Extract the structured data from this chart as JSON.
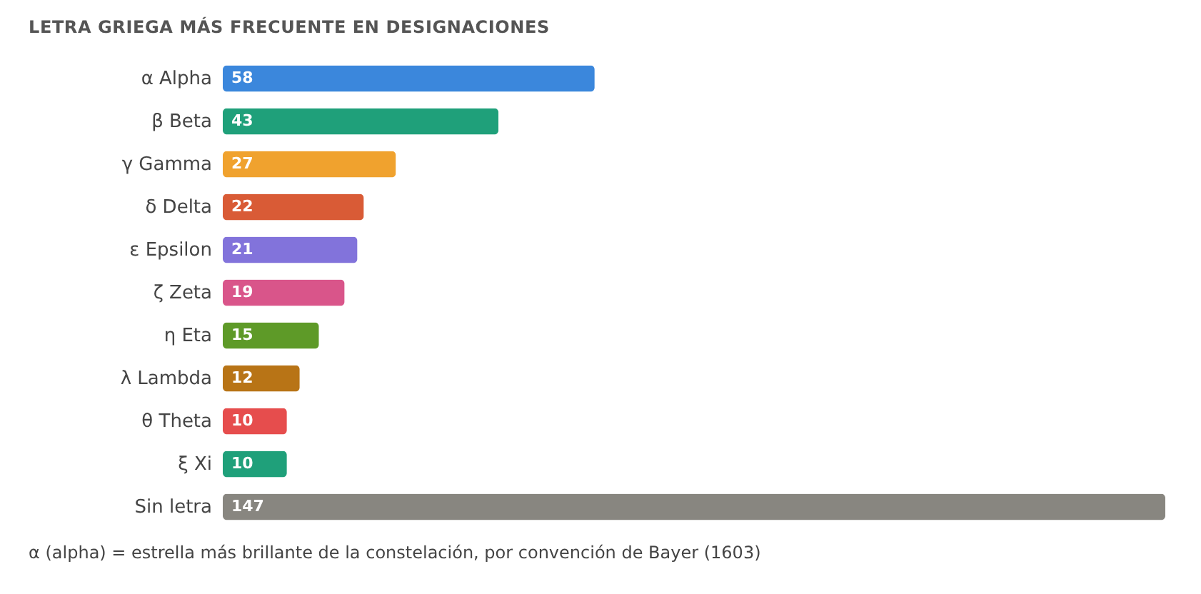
{
  "chart_data": {
    "type": "bar",
    "orientation": "horizontal",
    "title": "LETRA GRIEGA MÁS FRECUENTE EN DESIGNACIONES",
    "categories": [
      "α Alpha",
      "β Beta",
      "γ Gamma",
      "δ Delta",
      "ε Epsilon",
      "ζ Zeta",
      "η Eta",
      "λ Lambda",
      "θ Theta",
      "ξ Xi",
      "Sin letra"
    ],
    "values": [
      58,
      43,
      27,
      22,
      21,
      19,
      15,
      12,
      10,
      10,
      147
    ],
    "colors": [
      "#3b87dc",
      "#1fa07a",
      "#f0a22e",
      "#d95b36",
      "#8273db",
      "#d9558a",
      "#5e9a28",
      "#b87416",
      "#e64d4d",
      "#1fa07a",
      "#888680"
    ],
    "data_labels": true,
    "grid": false,
    "annotations": [
      "α (alpha) = estrella más brillante de la constelación, por convención de Bayer (1603)"
    ]
  }
}
